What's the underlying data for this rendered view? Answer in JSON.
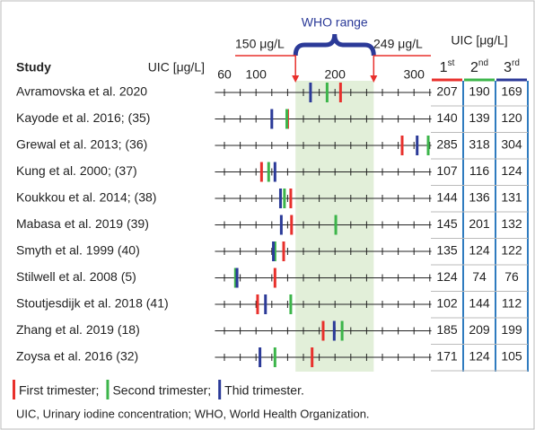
{
  "chart_data": {
    "type": "strip",
    "category_header": "Study",
    "xlabel": "UIC [μg/L]",
    "xlim": [
      48,
      322
    ],
    "xticks": [
      60,
      100,
      200,
      300
    ],
    "minor_xticks": [
      60,
      80,
      100,
      120,
      140,
      160,
      180,
      200,
      220,
      240,
      260,
      280,
      300,
      320
    ],
    "who_range": {
      "label": "WHO range",
      "low": 150,
      "high": 249,
      "low_label": "150 μg/L",
      "high_label": "249 μg/L",
      "color": "#e2efd9"
    },
    "categories": [
      "Avramovska et al. 2020",
      "Kayode et al. 2016; (35)",
      "Grewal et al. 2013; (36)",
      "Kung et al. 2000; (37)",
      "Koukkou et al. 2014; (38)",
      "Mabasa et al. 2019 (39)",
      "Smyth et al. 1999 (40)",
      "Stilwell et al. 2008 (5)",
      "Stoutjesdijk et al. 2018 (41)",
      "Zhang et al. 2019 (18)",
      "Zoysa et al. 2016 (32)"
    ],
    "table_header": "UIC [μg/L]",
    "table_columns": [
      {
        "num": "1",
        "suffix": "st"
      },
      {
        "num": "2",
        "suffix": "nd"
      },
      {
        "num": "3",
        "suffix": "rd"
      }
    ],
    "series": [
      {
        "name": "First trimester;",
        "color": "#e8302c",
        "values": [
          207,
          140,
          285,
          107,
          144,
          145,
          135,
          124,
          102,
          185,
          171
        ]
      },
      {
        "name": "Second trimester;",
        "color": "#3cb54a",
        "values": [
          190,
          139,
          318,
          116,
          136,
          201,
          124,
          74,
          144,
          209,
          124
        ]
      },
      {
        "name": "Thid trimester.",
        "color": "#2b3a98",
        "values": [
          169,
          120,
          304,
          124,
          131,
          132,
          122,
          76,
          112,
          199,
          105
        ]
      }
    ],
    "footnote": "UIC, Urinary iodine concentration; WHO, World Health Organization."
  }
}
